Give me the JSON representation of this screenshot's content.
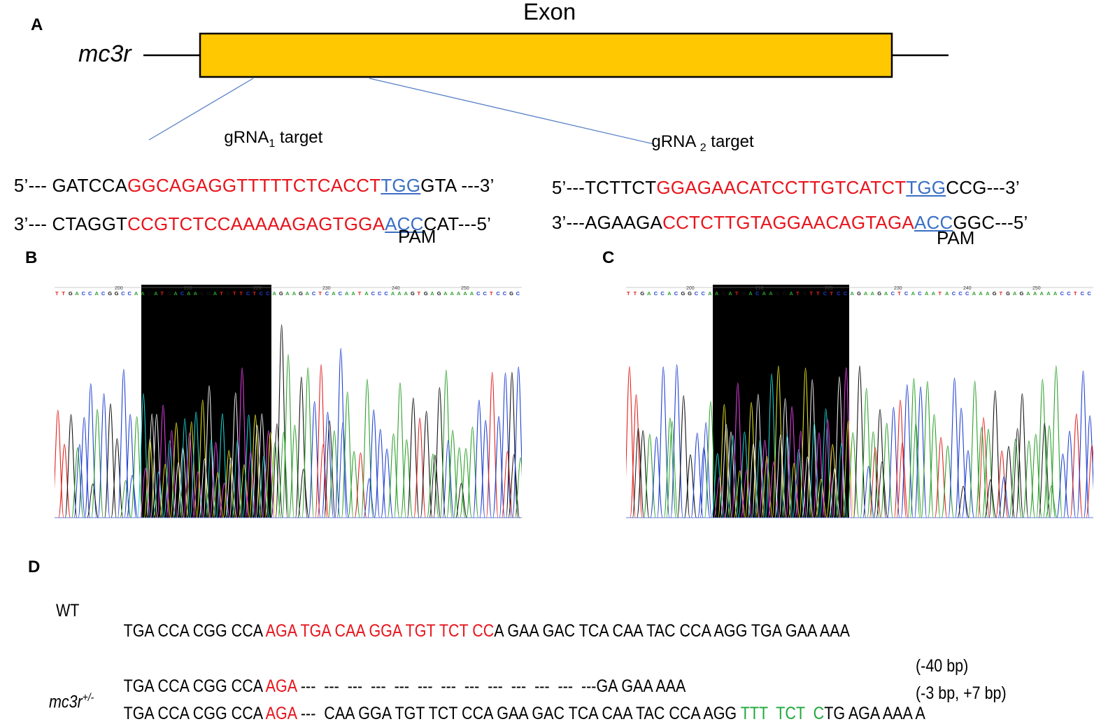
{
  "panel_a": {
    "label": "A",
    "exon_title": "Exon",
    "gene_name": "mc3r",
    "exon_color": "#ffc800",
    "grna1": {
      "label_main": "gRNA",
      "label_sub": "1",
      "label_tail": " target",
      "top": {
        "pre": "5’--- GATCCA",
        "target": "GGCAGAGGTTTTTCTCACCT",
        "pam": "TGG",
        "post": "GTA ---3’"
      },
      "bottom": {
        "pre": "3’--- CTAGGT",
        "target": "CCGTCTCCAAAAAGAGTGGA",
        "pam": "ACC",
        "post": "CAT---5’"
      },
      "pam_label": "PAM"
    },
    "grna2": {
      "label_main": "gRNA ",
      "label_sub": "2",
      "label_tail": " target",
      "top": {
        "pre": "5’---TCTTCT",
        "target": "GGAGAACATCCTTGTCATCT",
        "pam": "TGG",
        "post": "CCG---3’"
      },
      "bottom": {
        "pre": "3’---AGAAGA",
        "target": "CCTCTTGTAGGAACAGTAGA",
        "pam": "ACC",
        "post": "GGC---5’"
      },
      "pam_label": "PAM"
    }
  },
  "panel_b": {
    "label": "B",
    "ruler_numbers": [
      "200",
      "210",
      "220",
      "230",
      "240",
      "250",
      "260"
    ],
    "base_calls": "TTGACCACGGCCAAGATGACAAGGATGTTCTCCAGAAGACTCACAATACCCAAAGTGAGAAAAACCTCCGC"
  },
  "panel_c": {
    "label": "C",
    "ruler_numbers": [
      "200",
      "210",
      "220",
      "230",
      "240",
      "250",
      "26"
    ],
    "base_calls": "TTGACCACGGCCAAGATGACAAGGATGTTCTCCAGAAGACTCACAATACCCAAAGTGAGAAAAACCTCC"
  },
  "panel_d": {
    "label": "D",
    "wt_label": "WT",
    "wt": {
      "pre": "TGA CCA CGG CCA ",
      "red": "AGA TGA CAA GGA TGT TCT CC",
      "post": "A GAA GAC TCA CAA TAC CCA AGG TGA GAA AAA"
    },
    "mut_label_main": "mc3r",
    "mut_label_sup": "+/-",
    "mut1": {
      "pre": "TGA CCA CGG CCA ",
      "red": "AGA",
      "post": " ---  ---  ---  ---  ---  ---  ---  ---  ---  ---  ---  ---  ---GA GAA AAA",
      "note": "(-40 bp)"
    },
    "mut2": {
      "pre": "TGA CCA CGG CCA ",
      "red": "AGA",
      "mid": " ---  CAA GGA TGT TCT CCA GAA GAC TCA CAA TAC CCA AGG ",
      "green1": "TTT  TCT  C",
      "post": "TG AGA AAA A",
      "note": "(-3 bp, +7 bp)"
    }
  },
  "colors": {
    "red": "#e8141c",
    "blue": "#3a6fc4",
    "green": "#1fa83c",
    "trace_a": "#2ca02c",
    "trace_c": "#1f3fd0",
    "trace_g": "#111111",
    "trace_t": "#e0201c"
  }
}
